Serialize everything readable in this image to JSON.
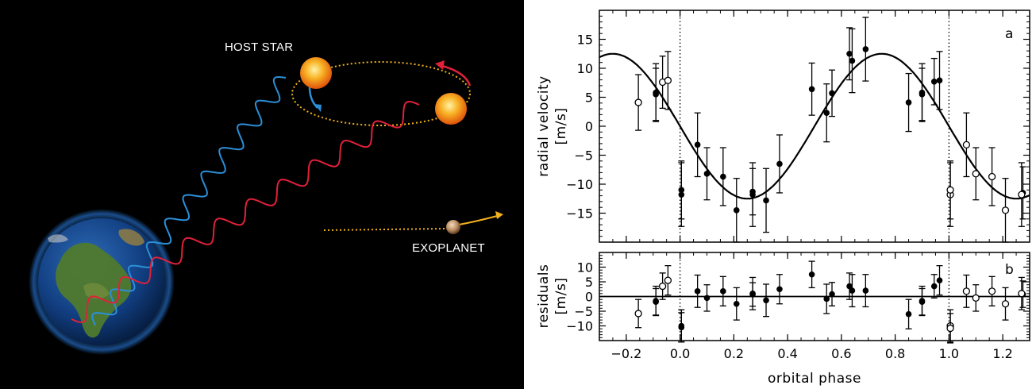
{
  "illustration": {
    "host_star_label": "HOST STAR",
    "exoplanet_label": "EXOPLANET",
    "colors": {
      "background": "#000000",
      "blueshift_wave": "#2b8fd8",
      "redshift_wave": "#e0213a",
      "orbit": "#f2b21c",
      "star": "#f59a16",
      "planet_arrow": "#f2b21c"
    }
  },
  "chart_data": [
    {
      "type": "scatter",
      "panel": "a",
      "ylabel_line1": "radial velocity",
      "ylabel_line2": "[m/s]",
      "xlim": [
        -0.3,
        1.3
      ],
      "ylim": [
        -20,
        20
      ],
      "xticks": [
        -0.2,
        0.0,
        0.2,
        0.4,
        0.6,
        0.8,
        1.0,
        1.2
      ],
      "yticks": [
        -15,
        -10,
        -5,
        0,
        5,
        10,
        15
      ],
      "vlines": [
        0.0,
        1.0
      ],
      "model": {
        "name": "",
        "amplitude": 12.5,
        "phase_shift": 0.0,
        "period": 1.0
      },
      "series": [
        {
          "name": "",
          "marker": "filled",
          "points": [
            {
              "x": -0.09,
              "y": 5.8,
              "err": 5.0
            },
            {
              "x": -0.09,
              "y": 5.5,
              "err": 4.5
            },
            {
              "x": 0.005,
              "y": -11.8,
              "err": 5.5
            },
            {
              "x": 0.005,
              "y": -11.0,
              "err": 5.0
            },
            {
              "x": 0.065,
              "y": -3.2,
              "err": 5.5
            },
            {
              "x": 0.1,
              "y": -8.2,
              "err": 4.5
            },
            {
              "x": 0.16,
              "y": -8.7,
              "err": 5.0
            },
            {
              "x": 0.21,
              "y": -14.5,
              "err": 5.5
            },
            {
              "x": 0.27,
              "y": -11.8,
              "err": 5.5
            },
            {
              "x": 0.27,
              "y": -11.3,
              "err": 4.0
            },
            {
              "x": 0.32,
              "y": -12.8,
              "err": 5.5
            },
            {
              "x": 0.37,
              "y": -6.5,
              "err": 5.0
            },
            {
              "x": 0.49,
              "y": 6.4,
              "err": 4.5
            },
            {
              "x": 0.545,
              "y": 2.3,
              "err": 5.0
            },
            {
              "x": 0.565,
              "y": 5.7,
              "err": 4.0
            },
            {
              "x": 0.63,
              "y": 12.5,
              "err": 4.5
            },
            {
              "x": 0.64,
              "y": 11.3,
              "err": 5.5
            },
            {
              "x": 0.69,
              "y": 13.3,
              "err": 5.5
            },
            {
              "x": 0.85,
              "y": 4.1,
              "err": 5.0
            },
            {
              "x": 0.9,
              "y": 5.8,
              "err": 5.0
            },
            {
              "x": 0.9,
              "y": 5.5,
              "err": 4.5
            },
            {
              "x": 0.945,
              "y": 7.7,
              "err": 4.0
            },
            {
              "x": 0.965,
              "y": 7.9,
              "err": 5.0
            },
            {
              "x": 1.275,
              "y": -11.5,
              "err": 4.5
            }
          ]
        },
        {
          "name": "",
          "marker": "open",
          "points": [
            {
              "x": -0.155,
              "y": 4.1,
              "err": 4.8
            },
            {
              "x": -0.065,
              "y": 7.6,
              "err": 4.5
            },
            {
              "x": -0.045,
              "y": 7.9,
              "err": 5.0
            },
            {
              "x": 1.005,
              "y": -11.8,
              "err": 5.5
            },
            {
              "x": 1.005,
              "y": -11.0,
              "err": 5.0
            },
            {
              "x": 1.065,
              "y": -3.2,
              "err": 5.5
            },
            {
              "x": 1.1,
              "y": -8.2,
              "err": 4.5
            },
            {
              "x": 1.16,
              "y": -8.7,
              "err": 5.0
            },
            {
              "x": 1.21,
              "y": -14.5,
              "err": 5.5
            },
            {
              "x": 1.27,
              "y": -11.8,
              "err": 5.5
            }
          ]
        }
      ]
    },
    {
      "type": "scatter",
      "panel": "b",
      "ylabel_line1": "residuals",
      "ylabel_line2": "[m/s]",
      "xlabel": "orbital phase",
      "xlim": [
        -0.3,
        1.3
      ],
      "ylim": [
        -15,
        15
      ],
      "xticks": [
        -0.2,
        0.0,
        0.2,
        0.4,
        0.6,
        0.8,
        1.0,
        1.2
      ],
      "xticklabels": [
        "−0.2",
        "0.0",
        "0.2",
        "0.4",
        "0.6",
        "0.8",
        "1.0",
        "1.2"
      ],
      "yticks": [
        -10,
        -5,
        0,
        5,
        10
      ],
      "yticklabels": [
        "−10",
        "−5",
        "0",
        "5",
        "10"
      ],
      "hline": 0,
      "vlines": [
        0.0,
        1.0
      ],
      "series": [
        {
          "name": "",
          "marker": "filled",
          "points": [
            {
              "x": -0.09,
              "y": -1.5,
              "err": 5.0
            },
            {
              "x": -0.09,
              "y": -1.8,
              "err": 4.5
            },
            {
              "x": 0.005,
              "y": -10.0,
              "err": 5.5
            },
            {
              "x": 0.005,
              "y": -10.5,
              "err": 5.0
            },
            {
              "x": 0.065,
              "y": 1.8,
              "err": 5.5
            },
            {
              "x": 0.1,
              "y": -0.5,
              "err": 4.5
            },
            {
              "x": 0.16,
              "y": 1.8,
              "err": 5.0
            },
            {
              "x": 0.21,
              "y": -2.5,
              "err": 5.5
            },
            {
              "x": 0.27,
              "y": 1.0,
              "err": 5.5
            },
            {
              "x": 0.27,
              "y": 0.7,
              "err": 4.0
            },
            {
              "x": 0.32,
              "y": -1.3,
              "err": 5.5
            },
            {
              "x": 0.37,
              "y": 2.5,
              "err": 5.0
            },
            {
              "x": 0.49,
              "y": 7.5,
              "err": 4.5
            },
            {
              "x": 0.545,
              "y": -0.8,
              "err": 5.0
            },
            {
              "x": 0.565,
              "y": 0.8,
              "err": 4.0
            },
            {
              "x": 0.63,
              "y": 3.5,
              "err": 4.5
            },
            {
              "x": 0.64,
              "y": 2.0,
              "err": 5.5
            },
            {
              "x": 0.69,
              "y": 2.0,
              "err": 5.5
            },
            {
              "x": 0.85,
              "y": -6.0,
              "err": 5.0
            },
            {
              "x": 0.9,
              "y": -1.5,
              "err": 5.0
            },
            {
              "x": 0.9,
              "y": -1.8,
              "err": 4.5
            },
            {
              "x": 0.945,
              "y": 3.5,
              "err": 4.0
            },
            {
              "x": 0.965,
              "y": 5.5,
              "err": 5.0
            },
            {
              "x": 1.275,
              "y": 0.8,
              "err": 4.5
            }
          ]
        },
        {
          "name": "",
          "marker": "open",
          "points": [
            {
              "x": -0.155,
              "y": -5.8,
              "err": 4.8
            },
            {
              "x": -0.065,
              "y": 3.5,
              "err": 4.5
            },
            {
              "x": -0.045,
              "y": 5.5,
              "err": 5.0
            },
            {
              "x": 1.005,
              "y": -10.0,
              "err": 5.5
            },
            {
              "x": 1.005,
              "y": -10.8,
              "err": 5.0
            },
            {
              "x": 1.065,
              "y": 1.8,
              "err": 5.5
            },
            {
              "x": 1.1,
              "y": -0.5,
              "err": 4.5
            },
            {
              "x": 1.16,
              "y": 1.8,
              "err": 5.0
            },
            {
              "x": 1.21,
              "y": -2.5,
              "err": 5.5
            },
            {
              "x": 1.27,
              "y": 1.0,
              "err": 5.5
            }
          ]
        }
      ]
    }
  ],
  "panels": {
    "a": {
      "tag": "a",
      "ylabel_line1": "radial velocity",
      "ylabel_line2": "[m/s]",
      "yticklabels": [
        "−15",
        "−10",
        "−5",
        "0",
        "5",
        "10",
        "15"
      ]
    },
    "b": {
      "tag": "b",
      "ylabel_line1": "residuals",
      "ylabel_line2": "[m/s]",
      "xlabel": "orbital phase"
    }
  }
}
